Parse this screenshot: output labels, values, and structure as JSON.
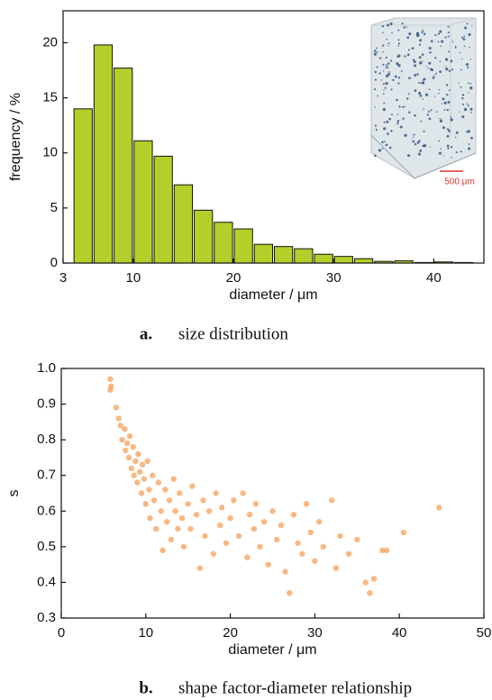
{
  "chart_data": [
    {
      "type": "histogram",
      "caption_letter": "a.",
      "caption": "size distribution",
      "x_label": "diameter / μm",
      "y_label": "frequency / %",
      "bins": [
        4,
        6,
        8,
        10,
        12,
        14,
        16,
        18,
        20,
        22,
        24,
        26,
        28,
        30,
        32,
        34,
        36,
        38,
        40,
        42,
        44
      ],
      "values": [
        14.0,
        19.8,
        17.7,
        11.1,
        9.7,
        7.1,
        4.8,
        3.7,
        3.1,
        1.7,
        1.5,
        1.3,
        0.8,
        0.6,
        0.4,
        0.15,
        0.2,
        0.05,
        0.1,
        0.05
      ],
      "color": "#b5cf2a",
      "xlim": [
        3,
        45
      ],
      "xticks": [
        3,
        10,
        20,
        30,
        40
      ],
      "ylim": [
        0,
        22.9
      ],
      "yticks": [
        0,
        5,
        10,
        15,
        20
      ],
      "inset_scale_label": "500 μm"
    },
    {
      "type": "scatter",
      "caption_letter": "b.",
      "caption": "shape factor-diameter relationship",
      "x_label": "diameter / μm",
      "y_label": "s",
      "color": "#f5a05a",
      "x": [
        5.8,
        5.8,
        5.9,
        6.5,
        6.8,
        7.0,
        7.2,
        7.5,
        7.6,
        7.8,
        8.0,
        8.1,
        8.3,
        8.5,
        8.6,
        8.8,
        9.0,
        9.1,
        9.3,
        9.5,
        9.6,
        9.8,
        10.0,
        10.2,
        10.4,
        10.5,
        10.8,
        11.0,
        11.2,
        11.5,
        11.8,
        12.0,
        12.3,
        12.5,
        12.8,
        13.0,
        13.3,
        13.5,
        13.8,
        14.0,
        14.3,
        14.5,
        15.0,
        15.3,
        15.5,
        16.0,
        16.4,
        16.8,
        17.0,
        17.5,
        18.0,
        18.3,
        18.8,
        19.0,
        19.5,
        20.0,
        20.4,
        21.0,
        21.5,
        22.0,
        22.3,
        22.8,
        23.0,
        23.5,
        24.0,
        24.5,
        25.0,
        25.5,
        26.0,
        26.5,
        27.0,
        27.5,
        28.0,
        28.5,
        29.0,
        29.5,
        30.0,
        30.5,
        31.0,
        32.0,
        32.5,
        33.0,
        34.0,
        35.0,
        36.0,
        36.5,
        37.0,
        38.0,
        38.5,
        40.5,
        44.7
      ],
      "values": [
        0.97,
        0.94,
        0.95,
        0.89,
        0.86,
        0.84,
        0.8,
        0.83,
        0.77,
        0.79,
        0.75,
        0.81,
        0.72,
        0.78,
        0.7,
        0.74,
        0.68,
        0.76,
        0.71,
        0.65,
        0.73,
        0.69,
        0.62,
        0.74,
        0.66,
        0.58,
        0.7,
        0.63,
        0.55,
        0.68,
        0.6,
        0.49,
        0.66,
        0.57,
        0.63,
        0.52,
        0.69,
        0.6,
        0.55,
        0.65,
        0.58,
        0.5,
        0.62,
        0.55,
        0.67,
        0.59,
        0.44,
        0.63,
        0.53,
        0.6,
        0.48,
        0.65,
        0.56,
        0.61,
        0.51,
        0.58,
        0.63,
        0.53,
        0.65,
        0.47,
        0.59,
        0.55,
        0.62,
        0.5,
        0.57,
        0.45,
        0.6,
        0.52,
        0.56,
        0.43,
        0.37,
        0.59,
        0.51,
        0.48,
        0.62,
        0.54,
        0.46,
        0.57,
        0.5,
        0.63,
        0.44,
        0.53,
        0.48,
        0.52,
        0.4,
        0.37,
        0.41,
        0.49,
        0.49,
        0.54,
        0.61
      ],
      "xlim": [
        0,
        50
      ],
      "xticks": [
        0,
        10,
        20,
        30,
        40,
        50
      ],
      "ylim": [
        0.3,
        1.0
      ],
      "yticks": [
        0.3,
        0.4,
        0.5,
        0.6,
        0.7,
        0.8,
        0.9,
        {
          "value": 1.0,
          "label": "1.0"
        }
      ]
    }
  ]
}
